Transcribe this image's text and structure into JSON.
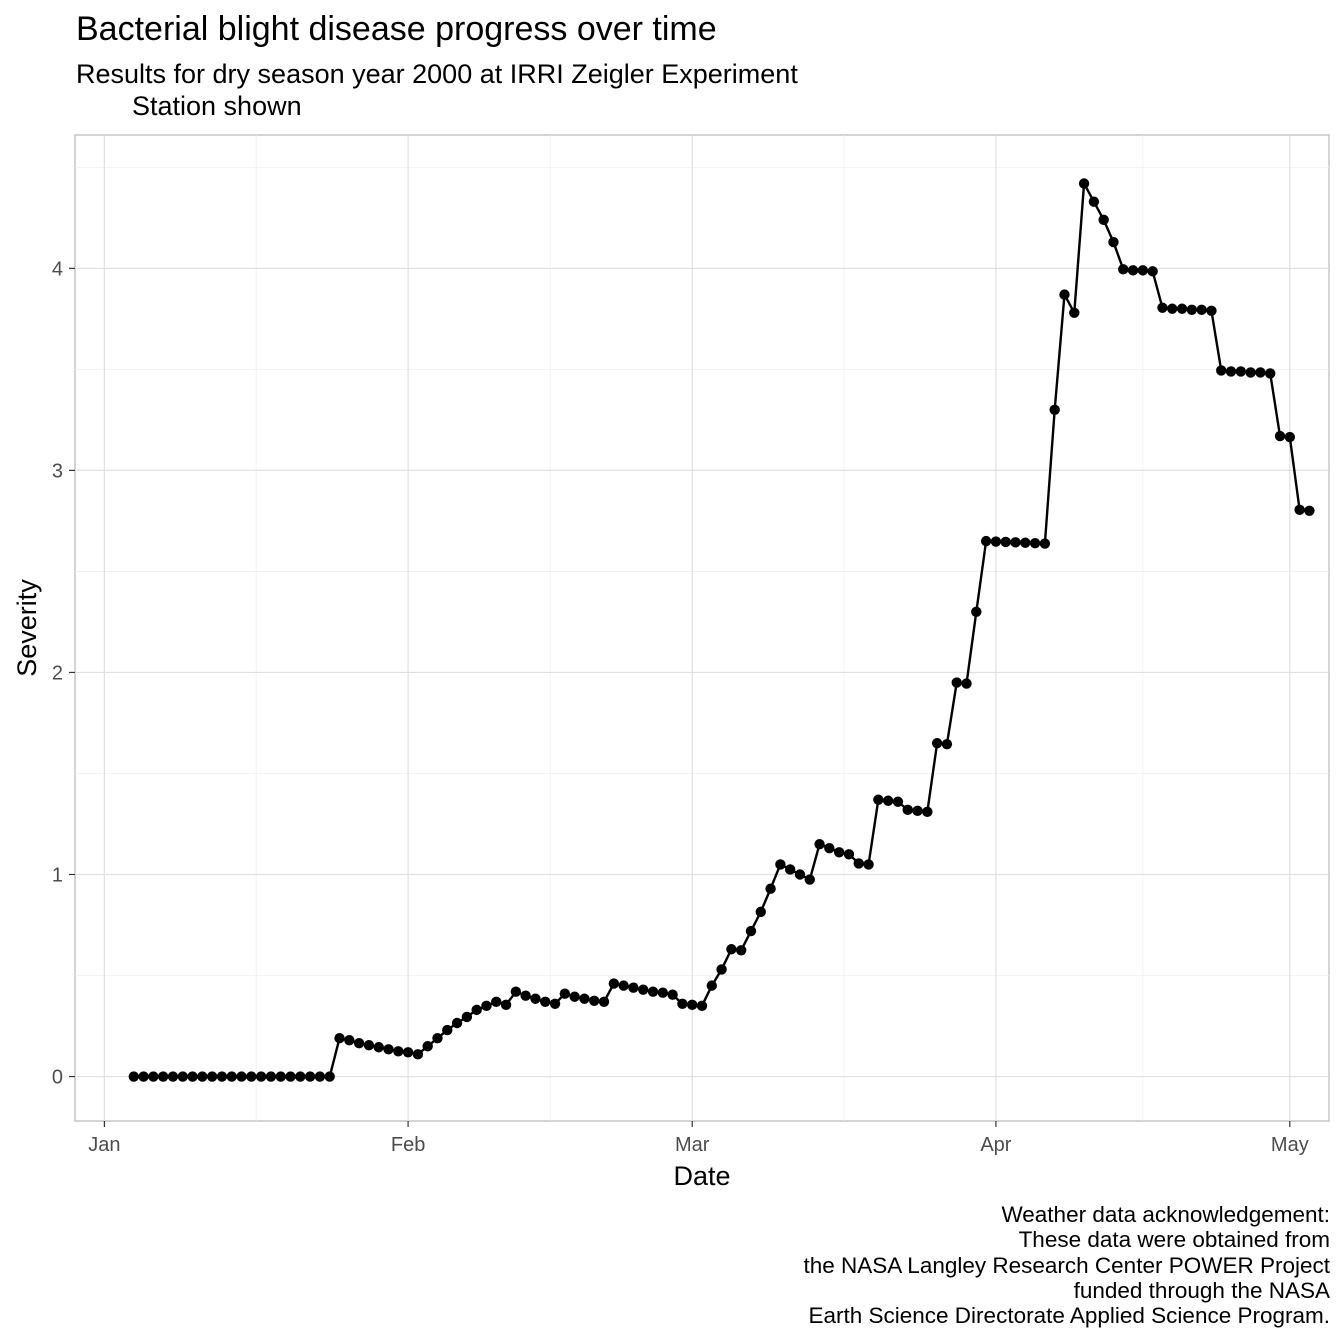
{
  "title": "Bacterial blight disease progress over time",
  "subtitle": {
    "line1": "Results for dry season year 2000 at IRRI Zeigler Experiment",
    "line2": "Station shown"
  },
  "caption": [
    "Weather data acknowledgement:",
    "These data were obtained from",
    "the NASA Langley Research Center POWER Project",
    "funded through the NASA",
    "Earth Science Directorate Applied Science Program."
  ],
  "chart_data": {
    "type": "line",
    "title": "Bacterial blight disease progress over time",
    "subtitle": "Results for dry season year 2000 at IRRI Zeigler Experiment Station shown",
    "xlabel": "Date",
    "ylabel": "Severity",
    "x_ticks": [
      {
        "label": "Jan",
        "date": "2000-01-01"
      },
      {
        "label": "Feb",
        "date": "2000-02-01"
      },
      {
        "label": "Mar",
        "date": "2000-03-01"
      },
      {
        "label": "Apr",
        "date": "2000-04-01"
      },
      {
        "label": "May",
        "date": "2000-05-01"
      }
    ],
    "y_ticks": [
      0,
      1,
      2,
      3,
      4
    ],
    "xlim": [
      "2000-12-29",
      "2000-05-05"
    ],
    "xlim_note": "",
    "ylim": [
      -0.22,
      4.66
    ],
    "grid": true,
    "markers": true,
    "line_color": "#000000",
    "series": [
      {
        "name": "",
        "x_start": "2000-01-04",
        "values": [
          0,
          0,
          0,
          0,
          0,
          0,
          0,
          0,
          0,
          0,
          0,
          0,
          0,
          0,
          0,
          0,
          0,
          0,
          0,
          0,
          0,
          0.19,
          0.18,
          0.165,
          0.155,
          0.145,
          0.135,
          0.125,
          0.12,
          0.11,
          0.15,
          0.19,
          0.23,
          0.265,
          0.295,
          0.33,
          0.35,
          0.37,
          0.355,
          0.42,
          0.4,
          0.385,
          0.37,
          0.36,
          0.41,
          0.395,
          0.385,
          0.375,
          0.37,
          0.46,
          0.45,
          0.44,
          0.43,
          0.42,
          0.415,
          0.405,
          0.36,
          0.355,
          0.35,
          0.45,
          0.53,
          0.63,
          0.625,
          0.72,
          0.815,
          0.93,
          1.05,
          1.025,
          1.0,
          0.975,
          1.15,
          1.13,
          1.11,
          1.1,
          1.055,
          1.05,
          1.37,
          1.365,
          1.36,
          1.32,
          1.315,
          1.31,
          1.65,
          1.645,
          1.95,
          1.945,
          2.3,
          2.65,
          2.648,
          2.646,
          2.644,
          2.642,
          2.64,
          2.638,
          3.3,
          3.87,
          3.78,
          4.42,
          4.33,
          4.24,
          4.13,
          3.995,
          3.99,
          3.99,
          3.985,
          3.805,
          3.8,
          3.8,
          3.795,
          3.795,
          3.79,
          3.495,
          3.49,
          3.49,
          3.485,
          3.485,
          3.48,
          3.17,
          3.165,
          2.805,
          2.8
        ]
      }
    ]
  }
}
